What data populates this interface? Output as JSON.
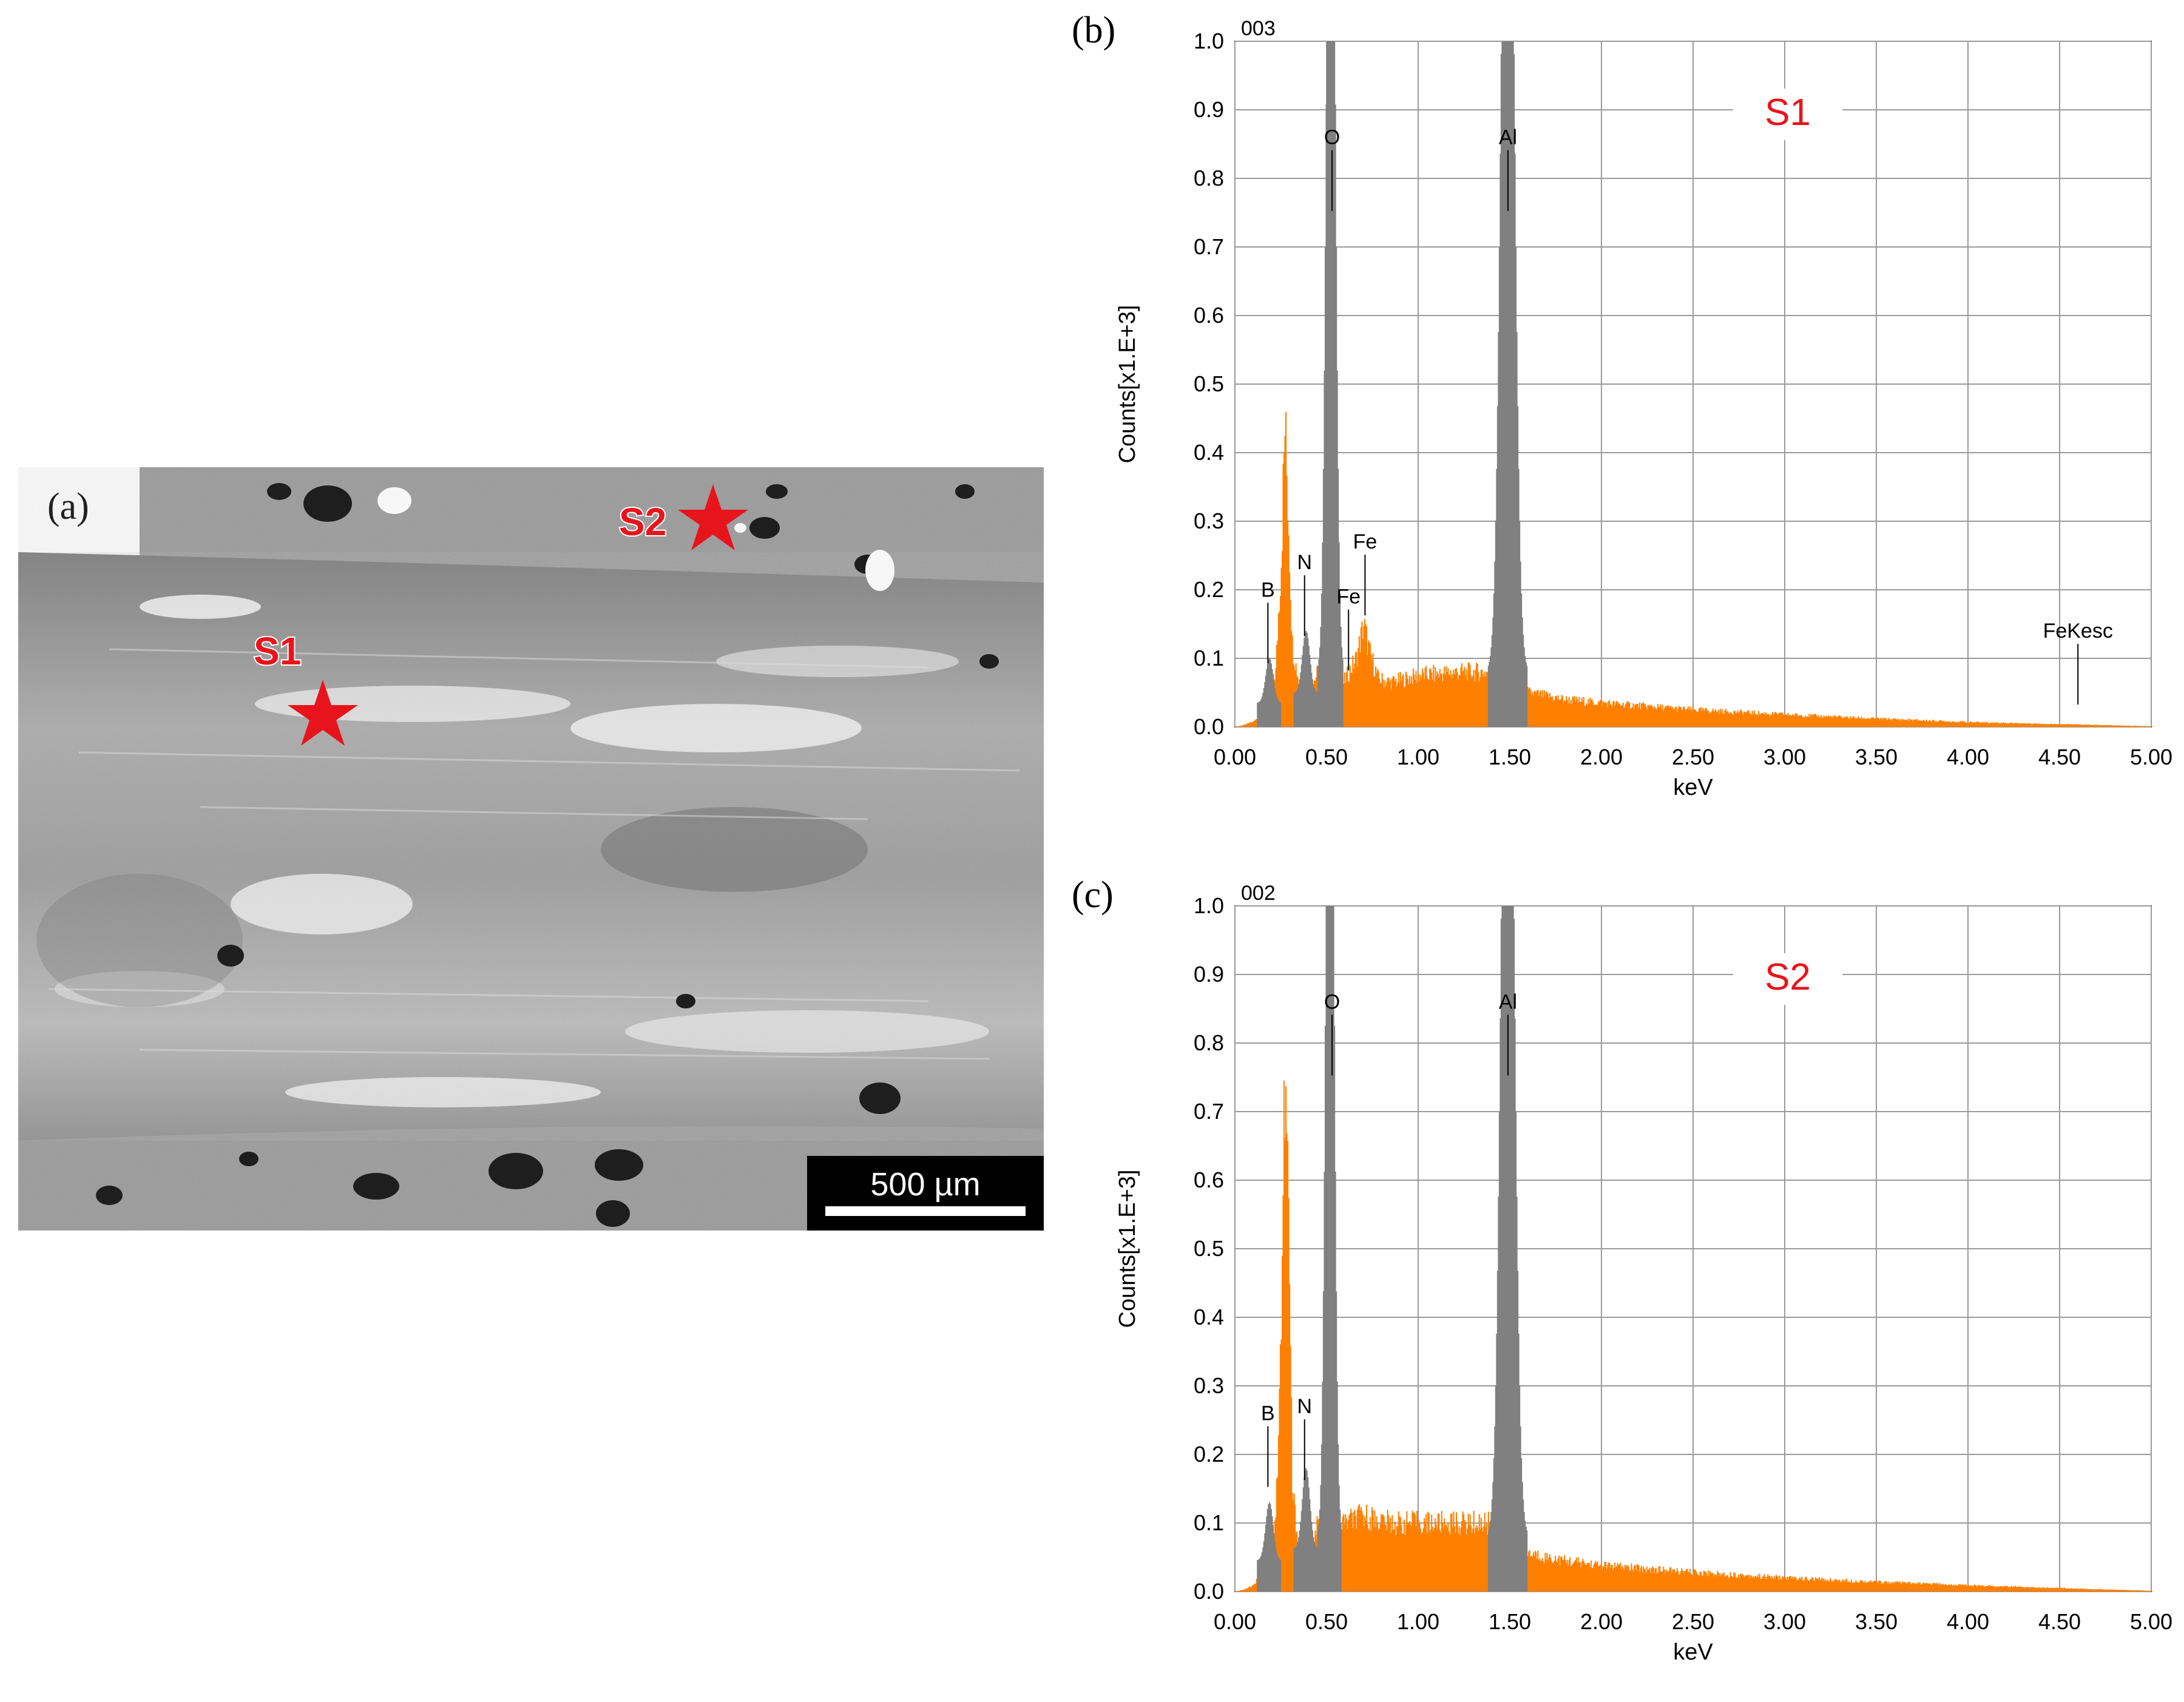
{
  "panels": {
    "a": {
      "label": "(a)",
      "scale_bar": "500 µm",
      "markers": [
        {
          "label": "S1",
          "color": "#e8141c"
        },
        {
          "label": "S2",
          "color": "#e8141c"
        }
      ]
    },
    "b": {
      "label": "(b)"
    },
    "c": {
      "label": "(c)"
    }
  },
  "chart_data": [
    {
      "type": "bar",
      "panel": "(b)",
      "spectrum_id": "003",
      "title": "S1",
      "xlabel": "keV",
      "ylabel": "Counts[x1.E+3]",
      "xlim": [
        0,
        5
      ],
      "ylim": [
        0,
        1
      ],
      "x_ticks": [
        "0.00",
        "0.50",
        "1.00",
        "1.50",
        "2.00",
        "2.50",
        "3.00",
        "3.50",
        "4.00",
        "4.50",
        "5.00"
      ],
      "y_ticks": [
        "0.0",
        "0.1",
        "0.2",
        "0.3",
        "0.4",
        "0.5",
        "0.6",
        "0.7",
        "0.8",
        "0.9",
        "1.0"
      ],
      "grid": true,
      "colors": {
        "spectrum": "#ff8000",
        "peaks": "#808080"
      },
      "spectrum": [
        {
          "x": 0.0,
          "y": 0.0
        },
        {
          "x": 0.05,
          "y": 0.003
        },
        {
          "x": 0.1,
          "y": 0.008
        },
        {
          "x": 0.15,
          "y": 0.02
        },
        {
          "x": 0.22,
          "y": 0.08
        },
        {
          "x": 0.25,
          "y": 0.25
        },
        {
          "x": 0.27,
          "y": 0.44
        },
        {
          "x": 0.29,
          "y": 0.3
        },
        {
          "x": 0.31,
          "y": 0.12
        },
        {
          "x": 0.35,
          "y": 0.06
        },
        {
          "x": 0.4,
          "y": 0.05
        },
        {
          "x": 0.45,
          "y": 0.08
        },
        {
          "x": 0.58,
          "y": 0.06
        },
        {
          "x": 0.62,
          "y": 0.08
        },
        {
          "x": 0.66,
          "y": 0.1
        },
        {
          "x": 0.7,
          "y": 0.15
        },
        {
          "x": 0.73,
          "y": 0.11
        },
        {
          "x": 0.78,
          "y": 0.07
        },
        {
          "x": 0.85,
          "y": 0.065
        },
        {
          "x": 1.0,
          "y": 0.075
        },
        {
          "x": 1.2,
          "y": 0.08
        },
        {
          "x": 1.38,
          "y": 0.08
        },
        {
          "x": 1.6,
          "y": 0.05
        },
        {
          "x": 1.8,
          "y": 0.04
        },
        {
          "x": 2.0,
          "y": 0.035
        },
        {
          "x": 2.5,
          "y": 0.025
        },
        {
          "x": 3.0,
          "y": 0.018
        },
        {
          "x": 3.5,
          "y": 0.012
        },
        {
          "x": 4.0,
          "y": 0.007
        },
        {
          "x": 4.5,
          "y": 0.004
        },
        {
          "x": 5.0,
          "y": 0.001
        }
      ],
      "peaks": [
        {
          "element": "B",
          "x_range": [
            0.12,
            0.25
          ],
          "height": 0.1
        },
        {
          "element": "N",
          "x_range": [
            0.32,
            0.45
          ],
          "height": 0.14
        },
        {
          "element": "O",
          "x_range": [
            0.45,
            0.59
          ],
          "height": 1.0
        },
        {
          "element": "Al",
          "x_range": [
            1.38,
            1.59
          ],
          "height": 1.0
        }
      ],
      "element_labels": [
        {
          "text": "B",
          "x": 0.18,
          "y": 0.19
        },
        {
          "text": "N",
          "x": 0.38,
          "y": 0.23
        },
        {
          "text": "O",
          "x": 0.53,
          "y": 0.85
        },
        {
          "text": "Fe",
          "x": 0.62,
          "y": 0.18
        },
        {
          "text": "Fe",
          "x": 0.71,
          "y": 0.26
        },
        {
          "text": "Al",
          "x": 1.49,
          "y": 0.85
        },
        {
          "text": "FeKesc",
          "x": 4.6,
          "y": 0.13
        }
      ]
    },
    {
      "type": "bar",
      "panel": "(c)",
      "spectrum_id": "002",
      "title": "S2",
      "xlabel": "keV",
      "ylabel": "Counts[x1.E+3]",
      "xlim": [
        0,
        5
      ],
      "ylim": [
        0,
        1
      ],
      "x_ticks": [
        "0.00",
        "0.50",
        "1.00",
        "1.50",
        "2.00",
        "2.50",
        "3.00",
        "3.50",
        "4.00",
        "4.50",
        "5.00"
      ],
      "y_ticks": [
        "0.0",
        "0.1",
        "0.2",
        "0.3",
        "0.4",
        "0.5",
        "0.6",
        "0.7",
        "0.8",
        "0.9",
        "1.0"
      ],
      "grid": true,
      "colors": {
        "spectrum": "#ff8000",
        "peaks": "#808080"
      },
      "spectrum": [
        {
          "x": 0.0,
          "y": 0.0
        },
        {
          "x": 0.05,
          "y": 0.003
        },
        {
          "x": 0.1,
          "y": 0.01
        },
        {
          "x": 0.15,
          "y": 0.03
        },
        {
          "x": 0.22,
          "y": 0.1
        },
        {
          "x": 0.25,
          "y": 0.4
        },
        {
          "x": 0.27,
          "y": 0.74
        },
        {
          "x": 0.29,
          "y": 0.55
        },
        {
          "x": 0.31,
          "y": 0.15
        },
        {
          "x": 0.35,
          "y": 0.05
        },
        {
          "x": 0.4,
          "y": 0.05
        },
        {
          "x": 0.45,
          "y": 0.1
        },
        {
          "x": 0.58,
          "y": 0.1
        },
        {
          "x": 0.7,
          "y": 0.11
        },
        {
          "x": 0.85,
          "y": 0.1
        },
        {
          "x": 1.0,
          "y": 0.1
        },
        {
          "x": 1.2,
          "y": 0.1
        },
        {
          "x": 1.38,
          "y": 0.1
        },
        {
          "x": 1.6,
          "y": 0.055
        },
        {
          "x": 1.8,
          "y": 0.045
        },
        {
          "x": 2.0,
          "y": 0.038
        },
        {
          "x": 2.5,
          "y": 0.028
        },
        {
          "x": 3.0,
          "y": 0.02
        },
        {
          "x": 3.5,
          "y": 0.014
        },
        {
          "x": 4.0,
          "y": 0.009
        },
        {
          "x": 4.5,
          "y": 0.005
        },
        {
          "x": 5.0,
          "y": 0.001
        }
      ],
      "peaks": [
        {
          "element": "B",
          "x_range": [
            0.12,
            0.25
          ],
          "height": 0.13
        },
        {
          "element": "N",
          "x_range": [
            0.32,
            0.45
          ],
          "height": 0.18
        },
        {
          "element": "O",
          "x_range": [
            0.45,
            0.58
          ],
          "height": 1.0
        },
        {
          "element": "Al",
          "x_range": [
            1.38,
            1.59
          ],
          "height": 1.0
        }
      ],
      "element_labels": [
        {
          "text": "B",
          "x": 0.18,
          "y": 0.25
        },
        {
          "text": "N",
          "x": 0.38,
          "y": 0.26
        },
        {
          "text": "O",
          "x": 0.53,
          "y": 0.85
        },
        {
          "text": "Al",
          "x": 1.49,
          "y": 0.85
        }
      ]
    }
  ]
}
